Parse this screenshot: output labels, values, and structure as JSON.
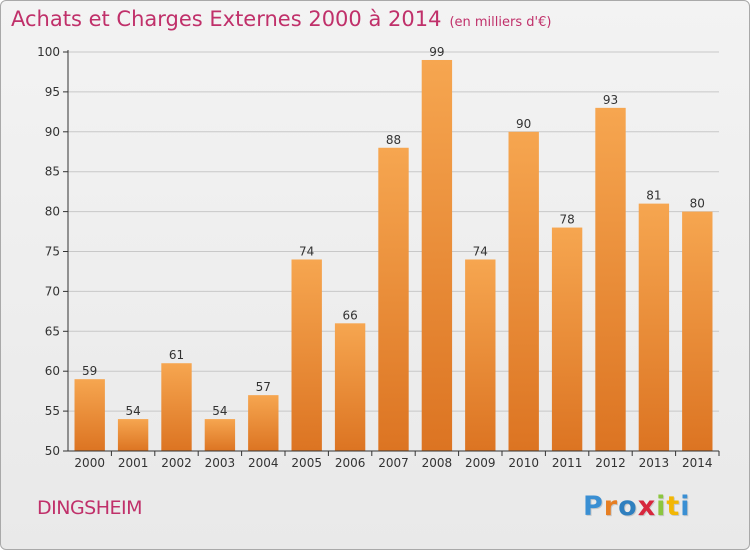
{
  "header": {
    "title": "Achats et Charges Externes 2000 à 2014",
    "unit": "(en milliers d'€)"
  },
  "footer": {
    "commune": "DINGSHEIM",
    "logo": {
      "letters": [
        "P",
        "r",
        "o",
        "x",
        "i",
        "t",
        "i"
      ],
      "colors": [
        "#3a8fd3",
        "#e67e22",
        "#2f7fbf",
        "#d7263d",
        "#8cc63f",
        "#f2b705",
        "#3a8fd3"
      ]
    }
  },
  "chart_data": {
    "type": "bar",
    "title": "Achats et Charges Externes 2000 à 2014",
    "subtitle": "(en milliers d'€)",
    "categories": [
      "2000",
      "2001",
      "2002",
      "2003",
      "2004",
      "2005",
      "2006",
      "2007",
      "2008",
      "2009",
      "2010",
      "2011",
      "2012",
      "2013",
      "2014"
    ],
    "values": [
      59,
      54,
      61,
      54,
      57,
      74,
      66,
      88,
      99,
      74,
      90,
      78,
      93,
      81,
      80
    ],
    "ylim": [
      50,
      100
    ],
    "yticks": [
      50,
      55,
      60,
      65,
      70,
      75,
      80,
      85,
      90,
      95,
      100
    ],
    "grid": true,
    "colors": {
      "bar_light": "#f6a650",
      "bar_dark": "#dc7422",
      "axis": "#333333",
      "grid": "#c8c8c8",
      "label": "#333333"
    }
  }
}
